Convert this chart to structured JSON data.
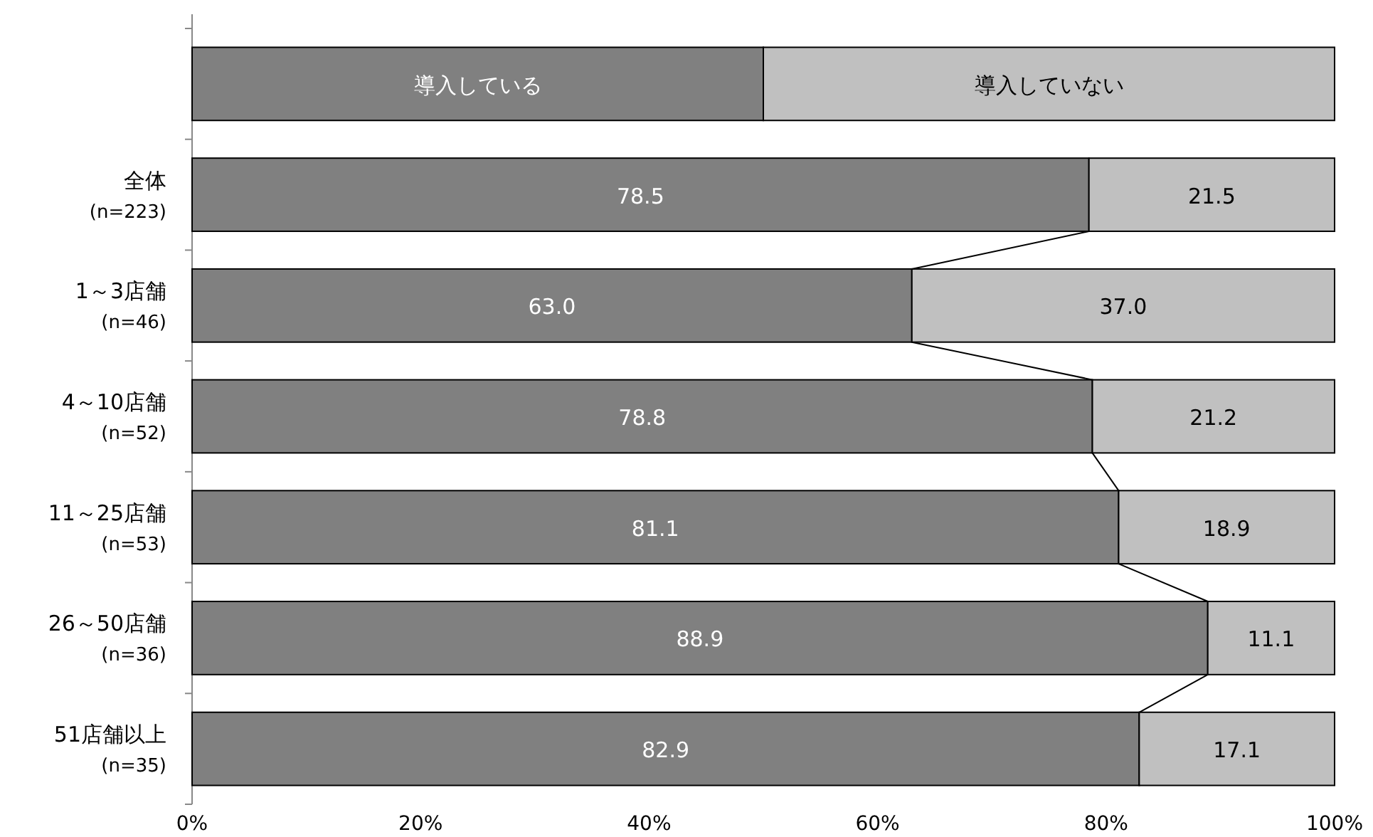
{
  "chart_data": {
    "type": "bar",
    "orientation": "horizontal",
    "stacked": true,
    "legend": "top",
    "categories": [
      "全体\n(n=223)",
      "1～3店舗\n(n=46)",
      "4～10店舗\n(n=52)",
      "11～25店舗\n(n=53)",
      "26～50店舗\n(n=36)",
      "51店舗以上\n(n=35)"
    ],
    "series": [
      {
        "name": "導入している",
        "color": "#808080",
        "values": [
          78.5,
          63.0,
          78.8,
          81.1,
          88.9,
          82.9
        ],
        "value_labels": [
          "78.5",
          "63.0",
          "78.8",
          "81.1",
          "88.9",
          "82.9"
        ]
      },
      {
        "name": "導入していない",
        "color": "#c0c0c0",
        "values": [
          21.5,
          37.0,
          21.2,
          18.9,
          11.1,
          17.1
        ],
        "value_labels": [
          "21.5",
          "37.0",
          "21.2",
          "18.9",
          "11.1",
          "17.1"
        ]
      }
    ],
    "xlim": [
      0,
      100
    ],
    "xticks": [
      {
        "value": 0,
        "label": "0%"
      },
      {
        "value": 20,
        "label": "20%"
      },
      {
        "value": 40,
        "label": "40%"
      },
      {
        "value": 60,
        "label": "60%"
      },
      {
        "value": 80,
        "label": "80%"
      },
      {
        "value": 100,
        "label": "100%"
      }
    ],
    "grid": false
  }
}
